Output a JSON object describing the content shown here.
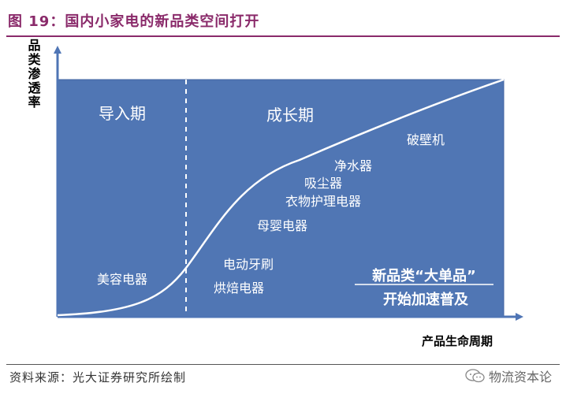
{
  "figure_title": "图 19：国内小家电的新品类空间打开",
  "diagram": {
    "axes": {
      "y_label": "品类渗透率",
      "x_label": "产品生命周期"
    },
    "phases": [
      {
        "name": "导入期"
      },
      {
        "name": "成长期"
      }
    ],
    "products": [
      "美容电器",
      "电动牙刷",
      "烘焙电器",
      "母婴电器",
      "衣物护理电器",
      "吸尘器",
      "净水器",
      "破壁机"
    ],
    "callout": {
      "line1": "新品类“大单品”",
      "line2": "开始加速普及"
    },
    "colors": {
      "panel_fill": "#5076b4",
      "panel_border": "#3f63a0",
      "text_light": "#ffffff",
      "axis": "#4f75b5",
      "curve": "#ffffff"
    }
  },
  "source": "资料来源：光大证券研究所绘制",
  "watermark": "物流资本论"
}
